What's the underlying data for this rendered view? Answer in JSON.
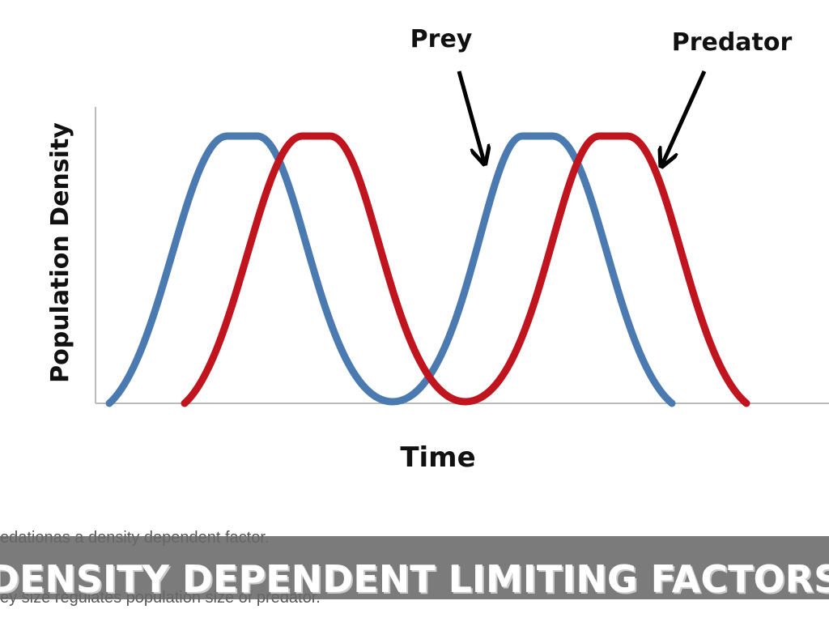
{
  "chart": {
    "labels": [
      "Prey",
      "Predator"
    ],
    "y_label": "Population Density",
    "x_label": "Time"
  },
  "caption_lines": [
    "edationas a density dependent factor.",
    "ey size regulates population size of predator."
  ],
  "banner": "DENSITY DEPENDENT LIMITING FACTORS"
}
